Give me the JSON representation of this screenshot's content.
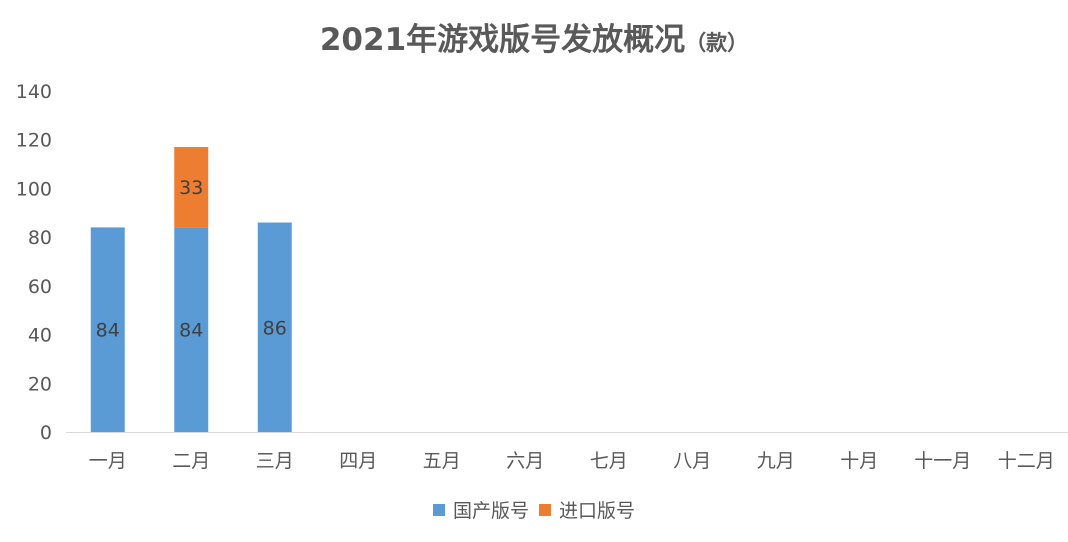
{
  "chart_data": {
    "type": "bar",
    "stacked": true,
    "title": "2021年游戏版号发放概况",
    "title_unit": "（款）",
    "categories": [
      "一月",
      "二月",
      "三月",
      "四月",
      "五月",
      "六月",
      "七月",
      "八月",
      "九月",
      "十月",
      "十一月",
      "十二月"
    ],
    "series": [
      {
        "name": "国产版号",
        "color": "#5B9BD5",
        "values": [
          84,
          84,
          86,
          null,
          null,
          null,
          null,
          null,
          null,
          null,
          null,
          null
        ]
      },
      {
        "name": "进口版号",
        "color": "#ED7D31",
        "values": [
          null,
          33,
          null,
          null,
          null,
          null,
          null,
          null,
          null,
          null,
          null,
          null
        ]
      }
    ],
    "ylim": [
      0,
      140
    ],
    "yticks": [
      0,
      20,
      40,
      60,
      80,
      100,
      120,
      140
    ],
    "grid": false,
    "legend": "bottom"
  }
}
